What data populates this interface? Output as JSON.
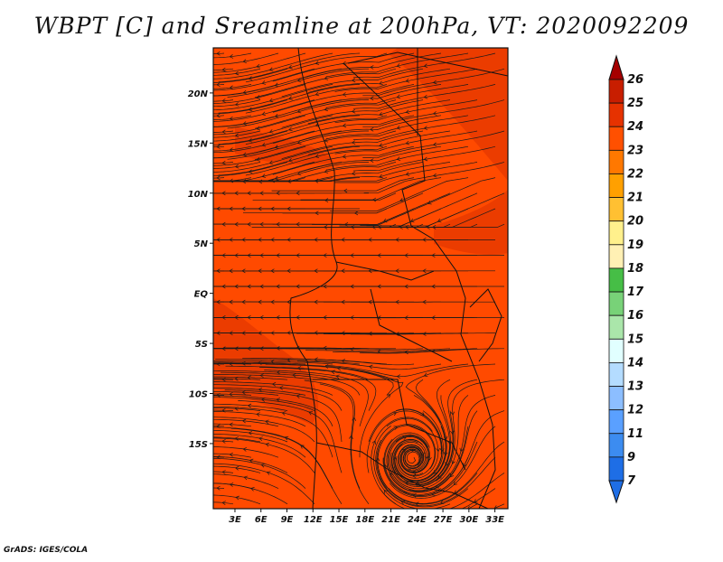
{
  "title": "WBPT [C] and Sreamline at 200hPa, VT: 2020092209",
  "credit": "GrADS: IGES/COLA",
  "map": {
    "lon_labels": [
      "3E",
      "6E",
      "9E",
      "12E",
      "15E",
      "18E",
      "21E",
      "24E",
      "27E",
      "30E",
      "33E"
    ],
    "lat_labels": [
      "20N",
      "15N",
      "10N",
      "5N",
      "EQ",
      "5S",
      "10S",
      "15S"
    ],
    "background_color": "#ff4a00",
    "warm_patch_color": "#e83a00",
    "streamline_color": "#1a1a1a",
    "border_color": "#111111"
  },
  "colorbar": {
    "levels": [
      "26",
      "25",
      "24",
      "23",
      "22",
      "21",
      "20",
      "19",
      "18",
      "17",
      "16",
      "15",
      "14",
      "13",
      "12",
      "11",
      "9",
      "7"
    ],
    "colors": [
      "#a50000",
      "#c81e00",
      "#e63200",
      "#ff5000",
      "#ff7800",
      "#ffa000",
      "#ffc032",
      "#fff08c",
      "#fff0b4",
      "#46be46",
      "#78d278",
      "#aae6aa",
      "#e1ffff",
      "#b4dcff",
      "#8cbeff",
      "#5aa0ff",
      "#3c8cf0",
      "#1e6ee6"
    ],
    "top_arrow_color": "#a50000",
    "bottom_arrow_color": "#1e6ee6"
  }
}
